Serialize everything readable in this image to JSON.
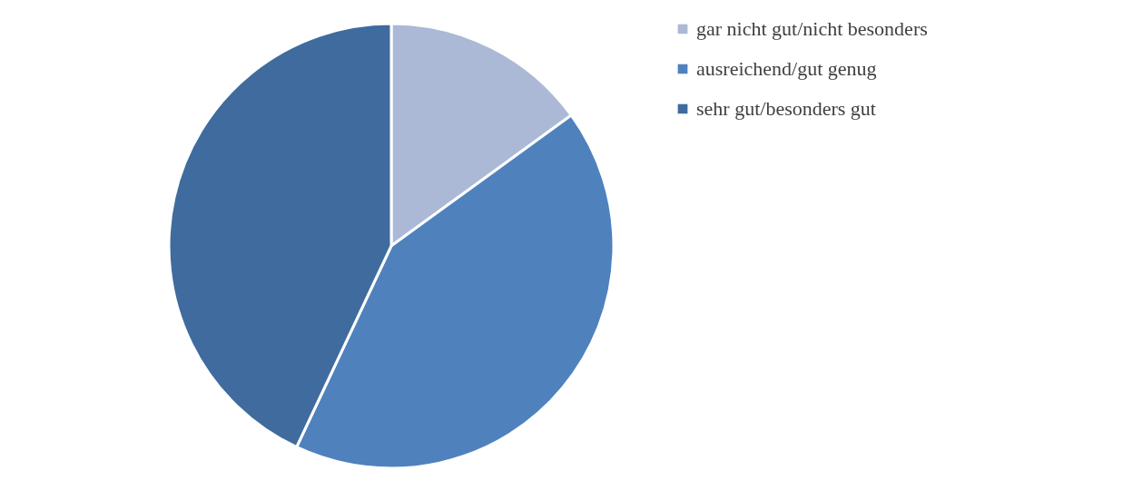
{
  "chart_data": {
    "type": "pie",
    "categories": [
      "gar nicht gut/nicht besonders",
      "ausreichend/gut genug",
      "sehr gut/besonders gut"
    ],
    "values": [
      15,
      42,
      43
    ],
    "colors": [
      "#abb9d7",
      "#4f81bd",
      "#3f6b9e"
    ],
    "legend": "right"
  }
}
